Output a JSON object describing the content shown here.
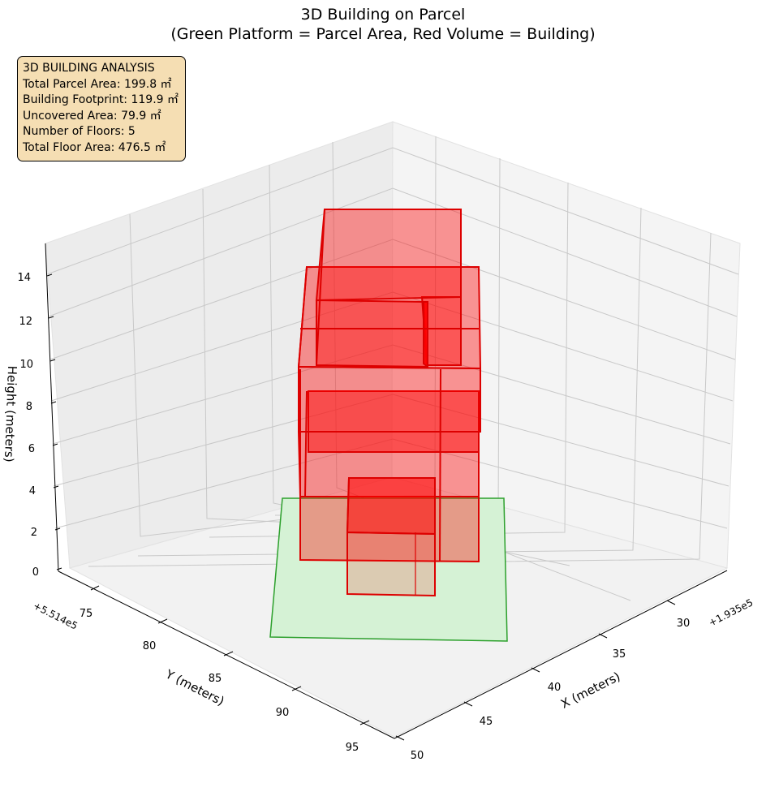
{
  "title": {
    "line1": "3D Building on Parcel",
    "line2": "(Green Platform = Parcel Area, Red Volume = Building)"
  },
  "info_box": {
    "heading": "3D BUILDING ANALYSIS",
    "lines": [
      "Total Parcel Area: 199.8 ㎡",
      "Building Footprint: 119.9 ㎡",
      "Uncovered Area: 79.9 ㎡",
      "Number of Floors: 5",
      "Total Floor Area: 476.5 ㎡"
    ]
  },
  "chart_data": {
    "type": "3d-bar",
    "title": "3D Building on Parcel\n(Green Platform = Parcel Area, Red Volume = Building)",
    "x_axis": {
      "label": "X (meters)",
      "offset": "+1.935e5",
      "ticks": [
        30,
        35,
        40,
        45,
        50
      ]
    },
    "y_axis": {
      "label": "Y (meters)",
      "offset": "+5.514e5",
      "ticks": [
        75,
        80,
        85,
        90,
        95
      ]
    },
    "z_axis": {
      "label": "Height (meters)",
      "ticks": [
        0,
        2,
        4,
        6,
        8,
        10,
        12,
        14
      ]
    },
    "series": [
      {
        "name": "Parcel Area",
        "color": "#90ee90",
        "edge_color": "#228b22"
      },
      {
        "name": "Building",
        "color": "#ff0000",
        "edge_color": "#cc0000"
      }
    ],
    "colors": {
      "parcel_fill": "#d4f2d4",
      "parcel_edge": "#2ca02c",
      "building_fill": "#ff5f5f",
      "building_edge": "#dd0000"
    }
  }
}
